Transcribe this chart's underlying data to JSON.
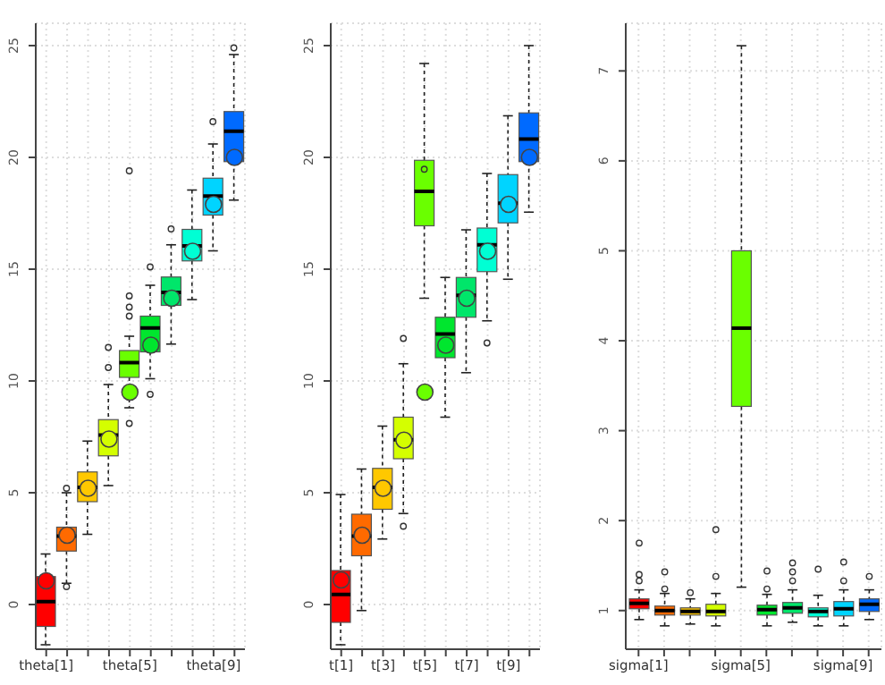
{
  "chart_data": [
    {
      "type": "box",
      "categories": [
        "theta[1]",
        null,
        null,
        null,
        "theta[5]",
        null,
        null,
        null,
        "theta[9]",
        null
      ],
      "colors": [
        "#ff0000",
        "#ff6a00",
        "#ffc800",
        "#d4ff00",
        "#6aff00",
        "#00e62e",
        "#00e66a",
        "#00ffd4",
        "#00d4ff",
        "#006aff"
      ],
      "ylim": [
        -2,
        26
      ],
      "yticks": [
        0,
        5,
        10,
        15,
        20,
        25
      ],
      "grid": true,
      "boxes": [
        {
          "low": -1.8,
          "q1": -0.98,
          "median": 0.13,
          "q3": 1.25,
          "high": 2.26
        },
        {
          "low": 0.95,
          "q1": 2.39,
          "median": 3.06,
          "q3": 3.46,
          "high": 5.0,
          "outliers": [
            5.2,
            0.8
          ]
        },
        {
          "low": 3.14,
          "q1": 4.6,
          "median": 5.24,
          "q3": 5.93,
          "high": 7.31
        },
        {
          "low": 5.32,
          "q1": 6.65,
          "median": 7.58,
          "q3": 8.27,
          "high": 9.84,
          "outliers": [
            10.6,
            11.5
          ]
        },
        {
          "low": 8.8,
          "q1": 10.16,
          "median": 10.82,
          "q3": 11.36,
          "high": 12.0,
          "outliers": [
            8.1,
            12.9,
            13.3,
            13.8,
            19.4
          ]
        },
        {
          "low": 10.1,
          "q1": 11.3,
          "median": 12.37,
          "q3": 12.9,
          "high": 14.28,
          "outliers": [
            15.1,
            9.4
          ]
        },
        {
          "low": 11.65,
          "q1": 13.38,
          "median": 13.96,
          "q3": 14.65,
          "high": 16.09,
          "outliers": [
            16.8
          ]
        },
        {
          "low": 13.64,
          "q1": 15.37,
          "median": 16.04,
          "q3": 16.78,
          "high": 18.54
        },
        {
          "low": 15.82,
          "q1": 17.42,
          "median": 18.27,
          "q3": 19.07,
          "high": 20.6,
          "outliers": [
            21.6
          ]
        },
        {
          "low": 18.09,
          "q1": 19.81,
          "median": 21.17,
          "q3": 22.05,
          "high": 24.6,
          "outliers": [
            24.9
          ]
        }
      ],
      "series": [
        {
          "type": "scatter",
          "marker": "circle",
          "colors": [
            "#ff0000",
            "#ff6a00",
            "#ffc800",
            "#d4ff00",
            "#6aff00",
            "#00e62e",
            "#00e66a",
            "#00ffd4",
            "#00d4ff",
            "#006aff"
          ],
          "values": [
            1.06,
            3.1,
            5.2,
            7.4,
            9.5,
            11.6,
            13.7,
            15.8,
            17.9,
            20.0
          ]
        }
      ]
    },
    {
      "type": "box",
      "categories": [
        "t[1]",
        null,
        "t[3]",
        null,
        "t[5]",
        null,
        "t[7]",
        null,
        "t[9]",
        null
      ],
      "colors": [
        "#ff0000",
        "#ff6a00",
        "#ffc800",
        "#d4ff00",
        "#6aff00",
        "#00e62e",
        "#00e66a",
        "#00ffd4",
        "#00d4ff",
        "#006aff"
      ],
      "ylim": [
        -2,
        26
      ],
      "yticks": [
        0,
        5,
        10,
        15,
        20,
        25
      ],
      "grid": true,
      "boxes": [
        {
          "low": -1.8,
          "q1": -0.8,
          "median": 0.45,
          "q3": 1.52,
          "high": 4.92
        },
        {
          "low": -0.27,
          "q1": 2.18,
          "median": 3.06,
          "q3": 4.04,
          "high": 6.06
        },
        {
          "low": 2.93,
          "q1": 4.26,
          "median": 5.24,
          "q3": 6.09,
          "high": 7.98
        },
        {
          "low": 4.07,
          "q1": 6.52,
          "median": 7.37,
          "q3": 8.38,
          "high": 10.77,
          "outliers": [
            11.9,
            3.5
          ]
        },
        {
          "low": 13.7,
          "q1": 16.94,
          "median": 18.48,
          "q3": 19.87,
          "high": 24.2,
          "outliers": [
            19.47
          ]
        },
        {
          "low": 8.38,
          "q1": 11.04,
          "median": 12.1,
          "q3": 12.85,
          "high": 14.63
        },
        {
          "low": 10.37,
          "q1": 12.85,
          "median": 13.83,
          "q3": 14.63,
          "high": 16.76
        },
        {
          "low": 12.69,
          "q1": 14.89,
          "median": 16.09,
          "q3": 16.84,
          "high": 19.28,
          "outliers": [
            11.7
          ]
        },
        {
          "low": 14.55,
          "q1": 17.07,
          "median": 17.95,
          "q3": 19.23,
          "high": 21.86
        },
        {
          "low": 17.55,
          "q1": 19.81,
          "median": 20.82,
          "q3": 21.99,
          "high": 25.0
        }
      ],
      "series": [
        {
          "type": "scatter",
          "marker": "circle",
          "colors": [
            "#ff0000",
            "#ff6a00",
            "#ffc800",
            "#d4ff00",
            "#6aff00",
            "#00e62e",
            "#00e66a",
            "#00ffd4",
            "#00d4ff",
            "#006aff"
          ],
          "values": [
            1.1,
            3.1,
            5.2,
            7.35,
            9.5,
            11.6,
            13.7,
            15.8,
            17.9,
            20.0
          ]
        }
      ]
    },
    {
      "type": "box",
      "categories": [
        "sigma[1]",
        null,
        null,
        null,
        "sigma[5]",
        null,
        null,
        null,
        "sigma[9]",
        null
      ],
      "colors": [
        "#ff0000",
        "#ff6a00",
        "#ffc800",
        "#d4ff00",
        "#6aff00",
        "#00e62e",
        "#00e66a",
        "#00ffd4",
        "#00d4ff",
        "#006aff"
      ],
      "ylim": [
        0.57,
        7.53
      ],
      "yticks": [
        1,
        2,
        3,
        4,
        5,
        6,
        7
      ],
      "grid": true,
      "boxes": [
        {
          "low": 0.9,
          "q1": 1.02,
          "median": 1.08,
          "q3": 1.13,
          "high": 1.23,
          "outliers": [
            1.33,
            1.4,
            1.75
          ]
        },
        {
          "low": 0.83,
          "q1": 0.95,
          "median": 1.0,
          "q3": 1.05,
          "high": 1.19,
          "outliers": [
            1.24,
            1.43
          ]
        },
        {
          "low": 0.85,
          "q1": 0.95,
          "median": 0.99,
          "q3": 1.03,
          "high": 1.13,
          "outliers": [
            1.2
          ]
        },
        {
          "low": 0.83,
          "q1": 0.94,
          "median": 0.99,
          "q3": 1.07,
          "high": 1.19,
          "outliers": [
            1.38,
            1.9
          ]
        },
        {
          "low": 1.26,
          "q1": 3.27,
          "median": 4.14,
          "q3": 5.0,
          "high": 7.28
        },
        {
          "low": 0.83,
          "q1": 0.95,
          "median": 1.01,
          "q3": 1.06,
          "high": 1.18,
          "outliers": [
            1.24,
            1.44
          ]
        },
        {
          "low": 0.87,
          "q1": 0.97,
          "median": 1.03,
          "q3": 1.09,
          "high": 1.23,
          "outliers": [
            1.33,
            1.43,
            1.53
          ]
        },
        {
          "low": 0.83,
          "q1": 0.93,
          "median": 0.99,
          "q3": 1.03,
          "high": 1.17,
          "outliers": [
            1.46
          ]
        },
        {
          "low": 0.83,
          "q1": 0.94,
          "median": 1.02,
          "q3": 1.1,
          "high": 1.23,
          "outliers": [
            1.33,
            1.54
          ]
        },
        {
          "low": 0.9,
          "q1": 0.99,
          "median": 1.07,
          "q3": 1.13,
          "high": 1.23,
          "outliers": [
            1.38
          ]
        }
      ]
    }
  ]
}
